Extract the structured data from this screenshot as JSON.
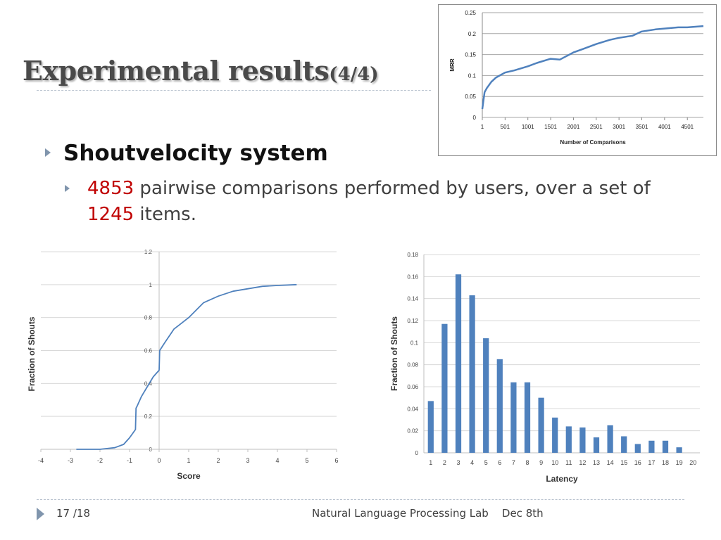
{
  "slide": {
    "title": "Experimental results",
    "title_suffix": "(4/4)",
    "bullet1": "Shoutvelocity system",
    "bullet2": {
      "num1": "4853",
      "text1": " pairwise comparisons performed by users, over a set of ",
      "num2": "1245",
      "text2": " items."
    },
    "footer": {
      "page": "17 /18",
      "lab": "Natural Language Processing Lab",
      "date": "Dec 8th"
    }
  },
  "colors": {
    "line": "#4f81bd",
    "bar": "#4f81bd",
    "number": "#c00000",
    "grid": "#d9d9d9"
  },
  "chart_data": [
    {
      "type": "line",
      "ylabel": "MRR",
      "xlabel": "Number of Comparisons",
      "xlim": [
        1,
        4853
      ],
      "ylim": [
        0,
        0.25
      ],
      "xticks": [
        "1",
        "501",
        "1001",
        "1501",
        "2001",
        "2501",
        "3001",
        "3501",
        "4001",
        "4501"
      ],
      "yticks": [
        "0",
        "0.05",
        "0.1",
        "0.15",
        "0.2",
        "0.25"
      ],
      "grid": true,
      "x": [
        1,
        50,
        100,
        200,
        300,
        500,
        700,
        1000,
        1200,
        1500,
        1700,
        2000,
        2200,
        2500,
        2800,
        3000,
        3300,
        3500,
        3800,
        4000,
        4300,
        4500,
        4853
      ],
      "y": [
        0.02,
        0.06,
        0.07,
        0.085,
        0.095,
        0.107,
        0.112,
        0.122,
        0.13,
        0.14,
        0.138,
        0.155,
        0.163,
        0.175,
        0.185,
        0.19,
        0.195,
        0.205,
        0.21,
        0.212,
        0.215,
        0.215,
        0.218
      ]
    },
    {
      "type": "line",
      "ylabel": "Fraction of Shouts",
      "xlabel": "Score",
      "xlim": [
        -4,
        6
      ],
      "ylim": [
        0,
        1.2
      ],
      "xticks": [
        "-4",
        "-3",
        "-2",
        "-1",
        "0",
        "1",
        "2",
        "3",
        "4",
        "5",
        "6"
      ],
      "yticks": [
        "0",
        "0.2",
        "0.4",
        "0.6",
        "0.8",
        "1",
        "1.2"
      ],
      "grid": true,
      "x": [
        -2.8,
        -2.0,
        -1.5,
        -1.2,
        -1.0,
        -0.8,
        -0.78,
        -0.75,
        -0.6,
        -0.4,
        -0.2,
        -0.05,
        0.0,
        0.02,
        0.2,
        0.5,
        1.0,
        1.5,
        2.0,
        2.5,
        3.0,
        3.5,
        4.0,
        4.65
      ],
      "y": [
        0.0,
        0.0,
        0.01,
        0.03,
        0.07,
        0.12,
        0.25,
        0.26,
        0.32,
        0.38,
        0.44,
        0.47,
        0.48,
        0.6,
        0.65,
        0.73,
        0.8,
        0.89,
        0.93,
        0.96,
        0.975,
        0.99,
        0.995,
        1.0
      ]
    },
    {
      "type": "bar",
      "ylabel": "Fraction of Shouts",
      "xlabel": "Latency",
      "ylim": [
        0,
        0.18
      ],
      "yticks": [
        "0",
        "0.02",
        "0.04",
        "0.06",
        "0.08",
        "0.1",
        "0.12",
        "0.14",
        "0.16",
        "0.18"
      ],
      "grid": true,
      "categories": [
        "1",
        "2",
        "3",
        "4",
        "5",
        "6",
        "7",
        "8",
        "9",
        "10",
        "11",
        "12",
        "13",
        "14",
        "15",
        "16",
        "17",
        "18",
        "19",
        "20"
      ],
      "values": [
        0.047,
        0.117,
        0.162,
        0.143,
        0.104,
        0.085,
        0.064,
        0.064,
        0.05,
        0.032,
        0.024,
        0.023,
        0.014,
        0.025,
        0.015,
        0.008,
        0.011,
        0.011,
        0.005,
        0
      ]
    }
  ]
}
